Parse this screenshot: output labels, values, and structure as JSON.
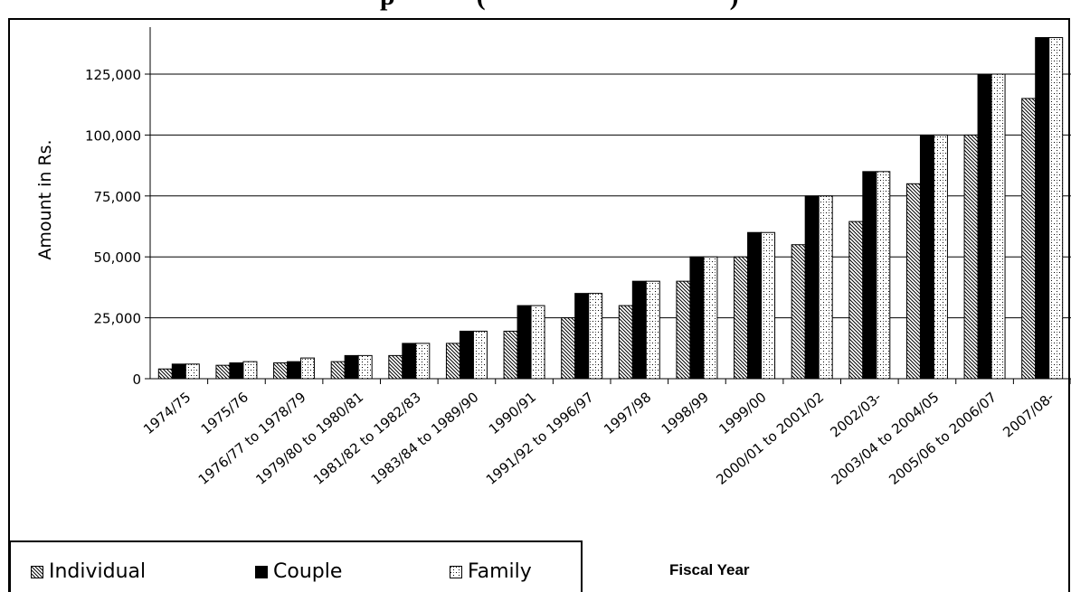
{
  "title_partial": "                    p            (                                    )",
  "chart_data": {
    "type": "bar",
    "categories": [
      "1974/75",
      "1975/76",
      "1976/77 to 1978/79",
      "1979/80 to 1980/81",
      "1981/82 to 1982/83",
      "1983/84 to 1989/90",
      "1990/91",
      "1991/92 to 1996/97",
      "1997/98",
      "1998/99",
      "1999/00",
      "2000/01 to 2001/02",
      "2002/03-",
      "2003/04 to 2004/05",
      "2005/06 to 2006/07",
      "2007/08-"
    ],
    "series": [
      {
        "name": "Individual",
        "values": [
          4000,
          5500,
          6500,
          7000,
          9500,
          14500,
          19500,
          25000,
          30000,
          40000,
          50000,
          55000,
          64500,
          80000,
          100000,
          115000
        ]
      },
      {
        "name": "Couple",
        "values": [
          6000,
          6500,
          7000,
          9500,
          14500,
          19500,
          30000,
          35000,
          40000,
          50000,
          60000,
          75000,
          85000,
          100000,
          125000,
          140000
        ]
      },
      {
        "name": "Family",
        "values": [
          6000,
          7000,
          8500,
          9500,
          14500,
          19500,
          30000,
          35000,
          40000,
          50000,
          60000,
          75000,
          85000,
          100000,
          125000,
          140000
        ]
      }
    ],
    "xlabel": "Fiscal Year",
    "ylabel": "Amount in Rs.",
    "ylim": [
      0,
      140000
    ],
    "yticks": [
      0,
      25000,
      50000,
      75000,
      100000,
      125000
    ],
    "ytick_labels": [
      "0",
      "25,000",
      "50,000",
      "75,000",
      "100,000",
      "125,000"
    ],
    "grid": true,
    "legend_position": "bottom-left",
    "colors": {
      "individual": "#ffffff",
      "couple": "#000000",
      "family": "#ffffff",
      "axis": "#000000"
    }
  },
  "legend": {
    "individual_label": "Individual",
    "couple_label": "Couple",
    "family_label": "Family"
  }
}
